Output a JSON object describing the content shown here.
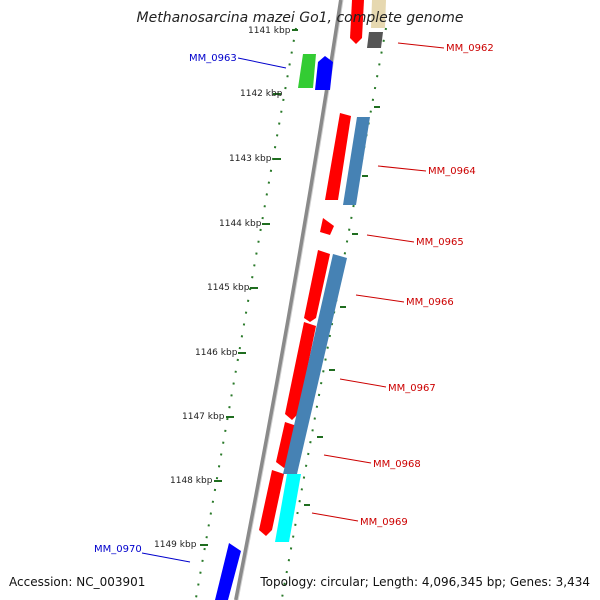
{
  "title": "Methanosarcina mazei Go1, complete genome",
  "footer": {
    "accession": "Accession: NC_003901",
    "topology": "Topology: circular; Length: 4,096,345 bp; Genes: 3,434"
  },
  "kbp_ticks": [
    "1141 kbp",
    "1142 kbp",
    "1143 kbp",
    "1144 kbp",
    "1145 kbp",
    "1146 kbp",
    "1147 kbp",
    "1148 kbp",
    "1149 kbp"
  ],
  "genes": [
    {
      "id": "MM_0963",
      "strand": "minus",
      "color": "#0000cc"
    },
    {
      "id": "MM_0962",
      "strand": "plus",
      "color": "#cc0000"
    },
    {
      "id": "MM_0964",
      "strand": "plus",
      "color": "#cc0000"
    },
    {
      "id": "MM_0965",
      "strand": "plus",
      "color": "#cc0000"
    },
    {
      "id": "MM_0966",
      "strand": "plus",
      "color": "#cc0000"
    },
    {
      "id": "MM_0967",
      "strand": "plus",
      "color": "#cc0000"
    },
    {
      "id": "MM_0968",
      "strand": "plus",
      "color": "#cc0000"
    },
    {
      "id": "MM_0969",
      "strand": "plus",
      "color": "#cc0000"
    },
    {
      "id": "MM_0970",
      "strand": "minus",
      "color": "#0000cc"
    }
  ],
  "colors": {
    "backbone": "#8a8a8a",
    "dots": "#2a7a2a",
    "plus_label": "#cc0000",
    "minus_label": "#0000cc",
    "feature_red": "#ff0000",
    "feature_blue": "#0000ff",
    "feature_green": "#33cc33",
    "feature_steel": "#4682b4",
    "feature_cyan": "#00ffff",
    "feature_gray": "#555555",
    "feature_tan": "#e6d8b0"
  }
}
